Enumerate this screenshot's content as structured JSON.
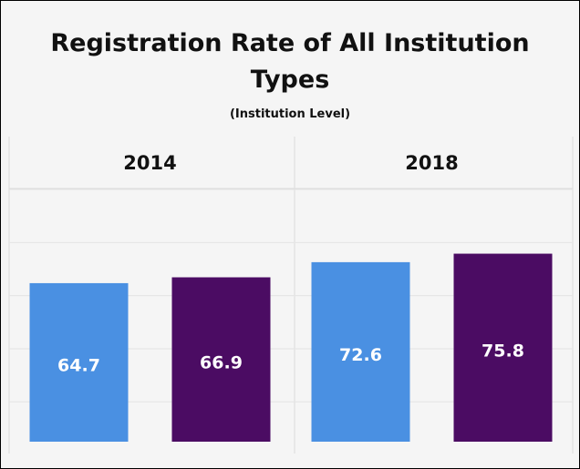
{
  "chart_data": {
    "type": "bar",
    "title": "Registration Rate of All Institution Types",
    "subtitle": "(Institution Level)",
    "categories": [
      "2014",
      "2018"
    ],
    "series": [
      {
        "color": "#4a90e2",
        "values": [
          64.7,
          72.6
        ]
      },
      {
        "color": "#4b0c63",
        "values": [
          66.9,
          75.8
        ]
      }
    ],
    "ylim": [
      5,
      100
    ],
    "yticks": [
      20,
      40,
      60,
      80,
      100
    ],
    "grid": true
  }
}
